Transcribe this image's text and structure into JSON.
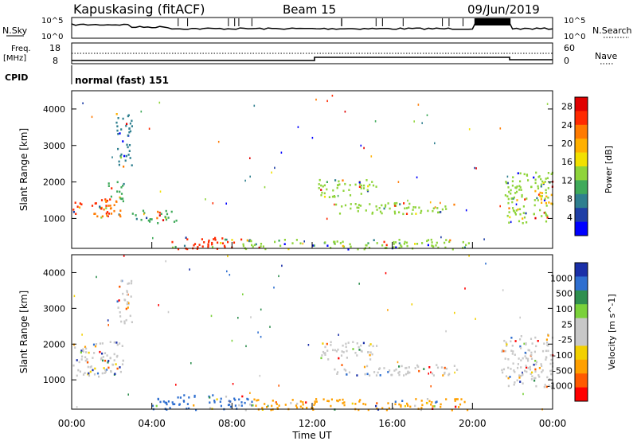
{
  "header": {
    "station": "Kapuskasing (fitACF)",
    "beam": "Beam 15",
    "date": "09/Jun/2019"
  },
  "top_panels": {
    "nsky_label": "N.Sky",
    "nsky_ticks": [
      "10^5",
      "10^0"
    ],
    "nsearch_label": "N.Search",
    "nsearch_ticks": [
      "10^5",
      "10^0"
    ],
    "freq_label": "Freq.",
    "freq_unit": "[MHz]",
    "freq_ticks": [
      "18",
      "8"
    ],
    "nave_label": "Nave",
    "nave_ticks": [
      "60",
      "0"
    ],
    "cpid_label": "CPID",
    "cpid_value": "normal (fast) 151"
  },
  "colors": {
    "power_scale": [
      "#0000ff",
      "#1f3fa6",
      "#2f7f8f",
      "#3faa5a",
      "#8fd43a",
      "#f2e000",
      "#ffb000",
      "#ff7a00",
      "#ff2a00",
      "#e00000"
    ],
    "velocity_scale": [
      "#1a2fa8",
      "#2f6fd0",
      "#2f8f4f",
      "#7ad13a",
      "#c8c8c8",
      "#c8c8c8",
      "#f2d000",
      "#ffa000",
      "#ff5a00",
      "#ff0000"
    ]
  },
  "chart_data": [
    {
      "type": "heatmap",
      "name": "power-panel",
      "ylabel": "Slant Range [km]",
      "y_ticks": [
        1000,
        2000,
        3000,
        4000
      ],
      "ylim": [
        180,
        4500
      ],
      "xlim": [
        0,
        24
      ],
      "colorbar_label": "Power [dB]",
      "colorbar_ticks": [
        "28",
        "24",
        "20",
        "16",
        "12",
        "8",
        "4"
      ],
      "colorbar_range": [
        0,
        30
      ],
      "regions": [
        {
          "t0": 0.0,
          "t1": 1.9,
          "r0": 1150,
          "r1": 1550,
          "value": 26
        },
        {
          "t0": 1.0,
          "t1": 2.4,
          "r0": 1050,
          "r1": 1500,
          "value": 22
        },
        {
          "t0": 1.8,
          "t1": 2.6,
          "r0": 1500,
          "r1": 2100,
          "value": 10
        },
        {
          "t0": 2.2,
          "t1": 3.0,
          "r0": 2400,
          "r1": 3900,
          "value": 8
        },
        {
          "t0": 4.5,
          "t1": 8.5,
          "r0": 180,
          "r1": 500,
          "value": 24
        },
        {
          "t0": 8.5,
          "t1": 19.8,
          "r0": 180,
          "r1": 450,
          "value": 14
        },
        {
          "t0": 12.3,
          "t1": 15.2,
          "r0": 1600,
          "r1": 2100,
          "value": 14
        },
        {
          "t0": 13.0,
          "t1": 19.2,
          "r0": 1150,
          "r1": 1450,
          "value": 12
        },
        {
          "t0": 2.9,
          "t1": 5.2,
          "r0": 900,
          "r1": 1250,
          "value": 9
        },
        {
          "t0": 21.6,
          "t1": 24.0,
          "r0": 900,
          "r1": 2300,
          "value": 12
        },
        {
          "t0": 23.0,
          "t1": 24.0,
          "r0": 1400,
          "r1": 1800,
          "value": 18
        }
      ]
    },
    {
      "type": "heatmap",
      "name": "velocity-panel",
      "ylabel": "Slant Range [km]",
      "y_ticks": [
        1000,
        2000,
        3000,
        4000
      ],
      "ylim": [
        180,
        4500
      ],
      "xlim": [
        0,
        24
      ],
      "colorbar_label": "Velocity [m s^-1]",
      "colorbar_ticks": [
        "1000",
        "500",
        "100",
        "25",
        "-25",
        "-100",
        "-500",
        "-1000"
      ],
      "x_ticks": [
        "00:00",
        "04:00",
        "08:00",
        "12:00",
        "16:00",
        "20:00",
        "00:00"
      ],
      "xlabel": "Time UT",
      "regions": [
        {
          "t0": 0.0,
          "t1": 2.6,
          "r0": 1100,
          "r1": 2100,
          "value": 0
        },
        {
          "t0": 2.2,
          "t1": 3.0,
          "r0": 2600,
          "r1": 3800,
          "value": 0
        },
        {
          "t0": 4.0,
          "t1": 9.0,
          "r0": 180,
          "r1": 600,
          "value": 200
        },
        {
          "t0": 9.0,
          "t1": 19.8,
          "r0": 180,
          "r1": 500,
          "value": -150
        },
        {
          "t0": 12.3,
          "t1": 15.2,
          "r0": 1600,
          "r1": 2100,
          "value": 0
        },
        {
          "t0": 13.0,
          "t1": 19.2,
          "r0": 1150,
          "r1": 1450,
          "value": 0
        },
        {
          "t0": 21.4,
          "t1": 24.0,
          "r0": 800,
          "r1": 2300,
          "value": 0
        }
      ]
    }
  ]
}
